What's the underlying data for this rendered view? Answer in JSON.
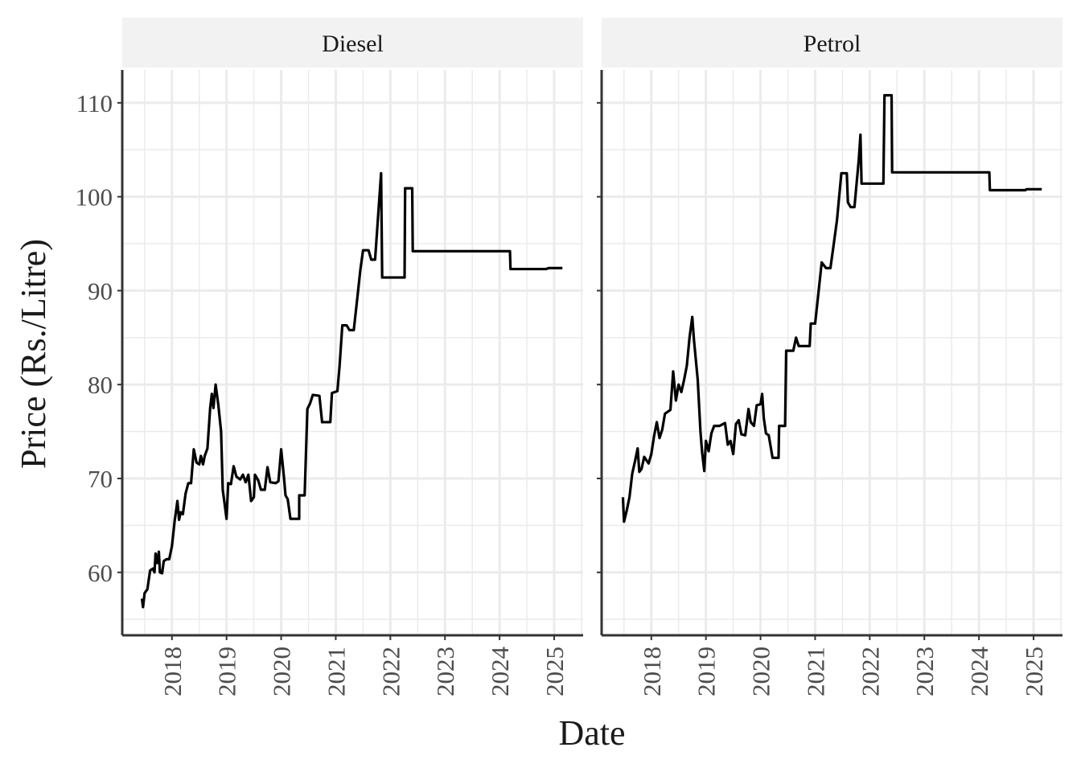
{
  "chart_data": [
    {
      "type": "line",
      "title": "Diesel",
      "xlabel": "Date",
      "ylabel": "Price (Rs./Litre)",
      "color": "#000000",
      "grid": true,
      "xlim": [
        2017.09,
        2025.53
      ],
      "ylim": [
        53.3,
        113.5
      ],
      "xticks": [
        2018,
        2019,
        2020,
        2021,
        2022,
        2023,
        2024,
        2025
      ],
      "yticks": [
        60,
        70,
        80,
        90,
        100,
        110
      ],
      "x": [
        2017.45,
        2017.47,
        2017.5,
        2017.55,
        2017.6,
        2017.65,
        2017.68,
        2017.7,
        2017.73,
        2017.76,
        2017.78,
        2017.82,
        2017.85,
        2017.9,
        2017.95,
        2018.0,
        2018.05,
        2018.1,
        2018.13,
        2018.16,
        2018.2,
        2018.25,
        2018.3,
        2018.35,
        2018.4,
        2018.45,
        2018.5,
        2018.53,
        2018.57,
        2018.6,
        2018.65,
        2018.7,
        2018.73,
        2018.76,
        2018.8,
        2018.85,
        2018.9,
        2018.93,
        2018.96,
        2019.0,
        2019.03,
        2019.08,
        2019.13,
        2019.18,
        2019.25,
        2019.3,
        2019.35,
        2019.4,
        2019.45,
        2019.5,
        2019.52,
        2019.58,
        2019.63,
        2019.7,
        2019.75,
        2019.8,
        2019.9,
        2019.95,
        2020.0,
        2020.05,
        2020.08,
        2020.12,
        2020.17,
        2020.33,
        2020.331,
        2020.43,
        2020.48,
        2020.53,
        2020.58,
        2020.7,
        2020.75,
        2020.9,
        2020.93,
        2021.03,
        2021.07,
        2021.12,
        2021.2,
        2021.25,
        2021.33,
        2021.4,
        2021.45,
        2021.5,
        2021.6,
        2021.65,
        2021.72,
        2021.8,
        2021.83,
        2021.85,
        2022.26,
        2022.27,
        2022.4,
        2022.41,
        2024.19,
        2024.2,
        2024.85,
        2024.9,
        2025.15
      ],
      "values": [
        57.2,
        56.3,
        57.8,
        58.2,
        60.2,
        60.4,
        60.0,
        62.0,
        61.0,
        62.2,
        60.0,
        59.9,
        61.2,
        61.4,
        61.4,
        62.8,
        65.5,
        67.6,
        65.6,
        66.4,
        66.2,
        68.4,
        69.5,
        69.5,
        73.1,
        71.7,
        71.5,
        72.4,
        71.5,
        72.4,
        73.2,
        77.5,
        79.0,
        77.5,
        80.0,
        77.8,
        75.0,
        68.8,
        67.5,
        65.7,
        69.5,
        69.4,
        71.3,
        70.2,
        69.9,
        70.4,
        69.6,
        70.4,
        67.6,
        68.0,
        70.4,
        69.8,
        68.8,
        68.8,
        71.2,
        69.6,
        69.5,
        69.7,
        73.1,
        70.2,
        68.2,
        67.8,
        65.7,
        65.7,
        68.2,
        68.2,
        77.4,
        78.0,
        78.9,
        78.8,
        76.0,
        76.0,
        79.1,
        79.3,
        82.0,
        86.3,
        86.3,
        85.8,
        85.8,
        89.5,
        92.2,
        94.3,
        94.3,
        93.3,
        93.3,
        100.0,
        102.5,
        91.4,
        91.4,
        100.9,
        100.9,
        94.2,
        94.2,
        92.3,
        92.3,
        92.4,
        92.4
      ]
    },
    {
      "type": "line",
      "title": "Petrol",
      "color": "#000000",
      "grid": true,
      "xlim": [
        2017.09,
        2025.53
      ],
      "ylim": [
        53.3,
        113.5
      ],
      "xticks": [
        2018,
        2019,
        2020,
        2021,
        2022,
        2023,
        2024,
        2025
      ],
      "yticks": [
        60,
        70,
        80,
        90,
        100,
        110
      ],
      "x": [
        2017.48,
        2017.5,
        2017.55,
        2017.6,
        2017.65,
        2017.7,
        2017.75,
        2017.78,
        2017.82,
        2017.87,
        2017.95,
        2018.0,
        2018.05,
        2018.1,
        2018.15,
        2018.2,
        2018.25,
        2018.35,
        2018.4,
        2018.45,
        2018.5,
        2018.55,
        2018.6,
        2018.65,
        2018.7,
        2018.75,
        2018.78,
        2018.85,
        2018.9,
        2018.93,
        2018.97,
        2019.0,
        2019.05,
        2019.1,
        2019.15,
        2019.25,
        2019.35,
        2019.4,
        2019.45,
        2019.5,
        2019.55,
        2019.6,
        2019.65,
        2019.72,
        2019.78,
        2019.82,
        2019.88,
        2019.93,
        2020.0,
        2020.03,
        2020.06,
        2020.1,
        2020.15,
        2020.22,
        2020.33,
        2020.34,
        2020.45,
        2020.47,
        2020.6,
        2020.65,
        2020.7,
        2020.9,
        2020.92,
        2021.0,
        2021.05,
        2021.12,
        2021.2,
        2021.28,
        2021.33,
        2021.4,
        2021.48,
        2021.58,
        2021.6,
        2021.65,
        2021.72,
        2021.8,
        2021.83,
        2021.85,
        2022.25,
        2022.27,
        2022.4,
        2022.41,
        2024.19,
        2024.2,
        2024.85,
        2024.87,
        2025.15
      ],
      "values": [
        68.0,
        65.4,
        66.6,
        68.0,
        70.5,
        71.8,
        73.2,
        70.7,
        71.0,
        72.3,
        71.6,
        72.6,
        74.5,
        76.0,
        74.3,
        75.2,
        76.9,
        77.3,
        81.4,
        78.3,
        80.0,
        79.2,
        80.5,
        82.0,
        85.0,
        87.2,
        84.8,
        80.5,
        75.0,
        72.8,
        70.8,
        74.0,
        72.9,
        74.8,
        75.6,
        75.6,
        75.9,
        73.6,
        74.0,
        72.6,
        75.8,
        76.2,
        74.7,
        74.6,
        77.4,
        76.0,
        75.6,
        77.8,
        77.9,
        79.0,
        76.4,
        74.8,
        74.6,
        72.2,
        72.2,
        75.6,
        75.6,
        83.6,
        83.6,
        85.0,
        84.1,
        84.1,
        86.5,
        86.5,
        89.2,
        93.0,
        92.4,
        92.4,
        94.5,
        97.5,
        102.5,
        102.5,
        99.4,
        98.9,
        98.9,
        104.0,
        106.6,
        101.4,
        101.4,
        110.8,
        110.8,
        102.6,
        102.6,
        100.7,
        100.7,
        100.8,
        100.8
      ]
    }
  ]
}
